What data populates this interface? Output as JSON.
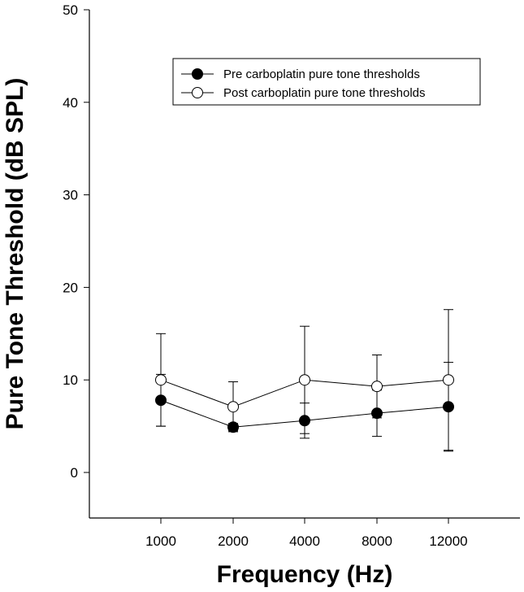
{
  "chart_data": {
    "type": "line",
    "xlabel": "Frequency (Hz)",
    "ylabel": "Pure Tone Threshold (dB SPL)",
    "categories": [
      "1000",
      "2000",
      "4000",
      "8000",
      "12000"
    ],
    "ylim": [
      -5,
      50
    ],
    "yticks": [
      0,
      10,
      20,
      30,
      40,
      50
    ],
    "grid": false,
    "legend_position": "top-right",
    "error_bars": true,
    "series": [
      {
        "name": "Pre carboplatin pure tone thresholds",
        "marker": "filled-circle",
        "color": "#000000",
        "values": [
          7.8,
          4.9,
          5.6,
          6.4,
          7.1
        ],
        "error": [
          2.8,
          0.4,
          1.9,
          2.5,
          4.8
        ]
      },
      {
        "name": "Post carboplatin pure tone thresholds",
        "marker": "open-circle",
        "color": "#ffffff",
        "values": [
          10.0,
          7.1,
          10.0,
          9.3,
          10.0
        ],
        "error": [
          5.0,
          2.7,
          5.8,
          3.4,
          7.6
        ]
      }
    ]
  }
}
